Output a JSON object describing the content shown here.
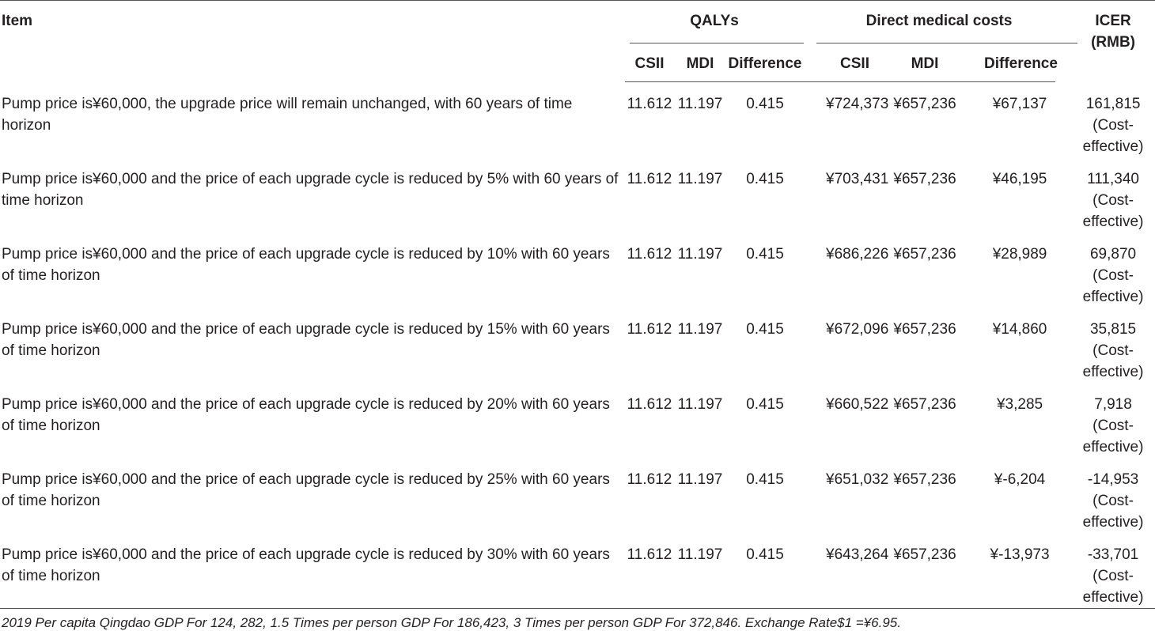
{
  "header": {
    "item": "Item",
    "qalys": "QALYs",
    "direct_costs": "Direct medical costs",
    "icer_line1": "ICER",
    "icer_line2": "(RMB)",
    "sub": [
      "CSII",
      "MDI",
      "Difference",
      "CSII",
      "MDI",
      "Difference"
    ]
  },
  "rows": [
    {
      "item": "Pump price is¥60,000, the upgrade price will remain unchanged, with 60 years of time horizon",
      "q_csii": "11.612",
      "q_mdi": "11.197",
      "q_diff": "0.415",
      "c_csii": "¥724,373",
      "c_mdi": "¥657,236",
      "c_diff": "¥67,137",
      "icer": "161,815",
      "icer_note": "(Cost-effective)"
    },
    {
      "item": "Pump price is¥60,000 and the price of each upgrade cycle is reduced by 5% with 60 years of time horizon",
      "q_csii": "11.612",
      "q_mdi": "11.197",
      "q_diff": "0.415",
      "c_csii": "¥703,431",
      "c_mdi": "¥657,236",
      "c_diff": "¥46,195",
      "icer": "111,340",
      "icer_note": "(Cost-effective)"
    },
    {
      "item": "Pump price is¥60,000 and the price of each upgrade cycle is reduced by 10% with 60 years of time horizon",
      "q_csii": "11.612",
      "q_mdi": "11.197",
      "q_diff": "0.415",
      "c_csii": "¥686,226",
      "c_mdi": "¥657,236",
      "c_diff": "¥28,989",
      "icer": "69,870",
      "icer_note": "(Cost-effective)"
    },
    {
      "item": "Pump price is¥60,000 and the price of each upgrade cycle is reduced by 15% with 60 years of time horizon",
      "q_csii": "11.612",
      "q_mdi": "11.197",
      "q_diff": "0.415",
      "c_csii": "¥672,096",
      "c_mdi": "¥657,236",
      "c_diff": "¥14,860",
      "icer": "35,815",
      "icer_note": "(Cost-effective)"
    },
    {
      "item": "Pump price is¥60,000 and the price of each upgrade cycle is reduced by 20% with 60 years of time horizon",
      "q_csii": "11.612",
      "q_mdi": "11.197",
      "q_diff": "0.415",
      "c_csii": "¥660,522",
      "c_mdi": "¥657,236",
      "c_diff": "¥3,285",
      "icer": "7,918",
      "icer_note": "(Cost-effective)"
    },
    {
      "item": "Pump price is¥60,000 and the price of each upgrade cycle is reduced by 25% with 60 years of time horizon",
      "q_csii": "11.612",
      "q_mdi": "11.197",
      "q_diff": "0.415",
      "c_csii": "¥651,032",
      "c_mdi": "¥657,236",
      "c_diff": "¥-6,204",
      "icer": "-14,953",
      "icer_note": "(Cost-effective)"
    },
    {
      "item": "Pump price is¥60,000 and the price of each upgrade cycle is reduced by 30% with 60 years of time horizon",
      "q_csii": "11.612",
      "q_mdi": "11.197",
      "q_diff": "0.415",
      "c_csii": "¥643,264",
      "c_mdi": "¥657,236",
      "c_diff": "¥-13,973",
      "icer": "-33,701",
      "icer_note": "(Cost-effective)"
    }
  ],
  "footnote": "2019 Per capita Qingdao GDP For 124, 282, 1.5 Times per person GDP For 186,423, 3 Times per person GDP For 372,846. Exchange Rate$1 =¥6.95."
}
